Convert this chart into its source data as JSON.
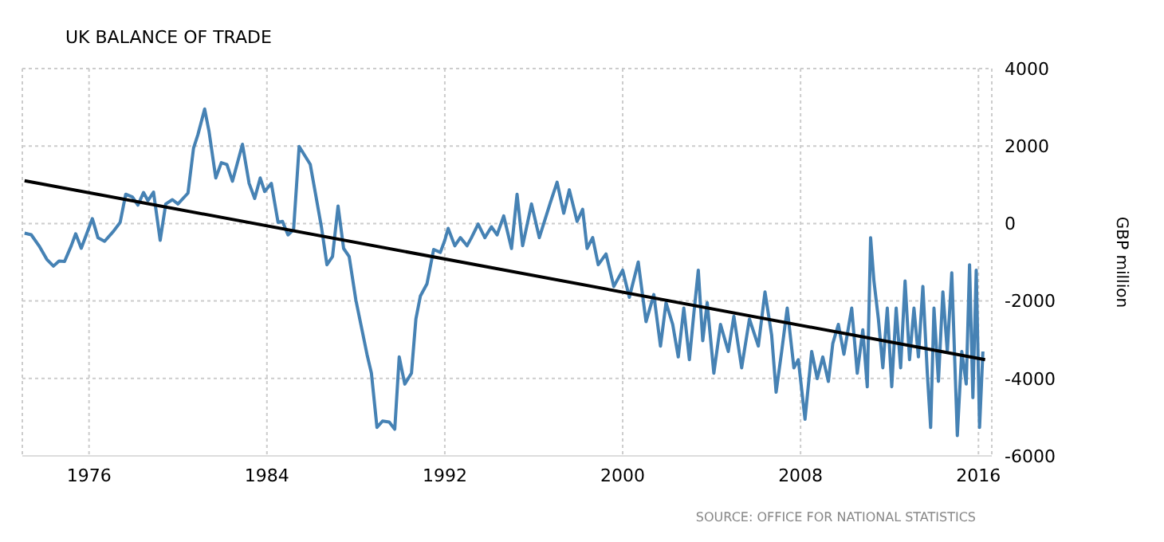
{
  "chart_data": {
    "type": "line",
    "title": "UK BALANCE OF TRADE",
    "y2label": "GBP million",
    "annotations": [
      "SOURCE: OFFICE FOR NATIONAL STATISTICS"
    ],
    "xlim": [
      1973,
      2016.6
    ],
    "xticks": [
      1976,
      1984,
      1992,
      2000,
      2008,
      2016
    ],
    "y2lim": [
      -6000,
      4000
    ],
    "y2ticks": [
      -6000,
      -4000,
      -2000,
      0,
      2000,
      4000
    ],
    "grid": true,
    "marker": "none",
    "line_style": "solid",
    "series": [
      {
        "axis": "y2",
        "color": "#4682b4",
        "x": [
          1973.1,
          1973.4,
          1973.75,
          1974.1,
          1974.4,
          1974.65,
          1974.9,
          1975.2,
          1975.4,
          1975.65,
          1976.15,
          1976.4,
          1976.7,
          1977.1,
          1977.4,
          1977.65,
          1977.95,
          1978.2,
          1978.45,
          1978.65,
          1978.9,
          1979.2,
          1979.45,
          1979.75,
          1980,
          1980.45,
          1980.7,
          1980.9,
          1981.2,
          1981.4,
          1981.7,
          1981.95,
          1982.2,
          1982.45,
          1982.9,
          1983.2,
          1983.45,
          1983.7,
          1983.9,
          1984.2,
          1984.5,
          1984.7,
          1984.95,
          1985.2,
          1985.45,
          1985.95,
          1986.45,
          1986.7,
          1986.95,
          1987.2,
          1987.45,
          1987.7,
          1988,
          1988.3,
          1988.5,
          1988.7,
          1988.95,
          1989.2,
          1989.5,
          1989.75,
          1989.95,
          1990.2,
          1990.5,
          1990.7,
          1990.9,
          1991.2,
          1991.5,
          1991.8,
          1992,
          1992.15,
          1992.45,
          1992.7,
          1993,
          1993.2,
          1993.5,
          1993.8,
          1994.1,
          1994.35,
          1994.65,
          1995,
          1995.25,
          1995.5,
          1995.9,
          1996.25,
          1996.75,
          1997.05,
          1997.35,
          1997.6,
          1997.95,
          1998.2,
          1998.4,
          1998.65,
          1998.9,
          1999.25,
          1999.6,
          2000,
          2000.3,
          2000.7,
          2001.05,
          2001.4,
          2001.7,
          2001.95,
          2002.25,
          2002.5,
          2002.75,
          2003,
          2003.2,
          2003.4,
          2003.6,
          2003.8,
          2004.1,
          2004.4,
          2004.75,
          2005,
          2005.35,
          2005.7,
          2006.1,
          2006.4,
          2006.7,
          2006.9,
          2007.15,
          2007.4,
          2007.7,
          2007.9,
          2008.2,
          2008.5,
          2008.75,
          2009,
          2009.25,
          2009.45,
          2009.7,
          2009.95,
          2010.3,
          2010.55,
          2010.8,
          2011,
          2011.15,
          2011.3,
          2011.5,
          2011.7,
          2011.9,
          2012.1,
          2012.3,
          2012.5,
          2012.7,
          2012.9,
          2013.1,
          2013.3,
          2013.5,
          2013.7,
          2013.85,
          2014,
          2014.2,
          2014.4,
          2014.6,
          2014.8,
          2015.05,
          2015.25,
          2015.45,
          2015.6,
          2015.75,
          2015.9,
          2016.05,
          2016.2
        ],
        "values": [
          -250,
          -290,
          -575,
          -925,
          -1100,
          -970,
          -980,
          -575,
          -265,
          -640,
          125,
          -365,
          -460,
          -200,
          30,
          755,
          685,
          475,
          800,
          590,
          810,
          -435,
          505,
          615,
          505,
          785,
          1945,
          2300,
          2955,
          2365,
          1175,
          1570,
          1525,
          1090,
          2045,
          1035,
          645,
          1175,
          825,
          1035,
          30,
          55,
          -295,
          -155,
          1990,
          1525,
          -85,
          -1065,
          -855,
          450,
          -645,
          -855,
          -1975,
          -2815,
          -3375,
          -3865,
          -5265,
          -5100,
          -5125,
          -5310,
          -3445,
          -4145,
          -3865,
          -2465,
          -1875,
          -1555,
          -670,
          -745,
          -435,
          -125,
          -575,
          -365,
          -575,
          -365,
          -15,
          -365,
          -85,
          -295,
          195,
          -645,
          755,
          -575,
          505,
          -365,
          545,
          1065,
          265,
          870,
          55,
          365,
          -645,
          -365,
          -1065,
          -785,
          -1625,
          -1205,
          -1905,
          -995,
          -2535,
          -1835,
          -3165,
          -2045,
          -2605,
          -3445,
          -2185,
          -3515,
          -2325,
          -1205,
          -3025,
          -2045,
          -3865,
          -2605,
          -3305,
          -2395,
          -3725,
          -2465,
          -3165,
          -1765,
          -2885,
          -4355,
          -3305,
          -2185,
          -3725,
          -3515,
          -5055,
          -3305,
          -4005,
          -3445,
          -4075,
          -3095,
          -2605,
          -3375,
          -2185,
          -3865,
          -2745,
          -4215,
          -365,
          -1485,
          -2465,
          -3725,
          -2185,
          -4215,
          -2185,
          -3725,
          -1485,
          -3515,
          -2185,
          -3445,
          -1625,
          -3865,
          -5265,
          -2185,
          -4075,
          -1765,
          -3305,
          -1275,
          -5475,
          -3305,
          -4145,
          -1065,
          -4495,
          -1205,
          -5265,
          -3305
        ]
      },
      {
        "axis": "y2",
        "color": "#000000",
        "x": [
          1973.1,
          2016.3
        ],
        "values": [
          1105,
          -3515
        ]
      }
    ]
  }
}
